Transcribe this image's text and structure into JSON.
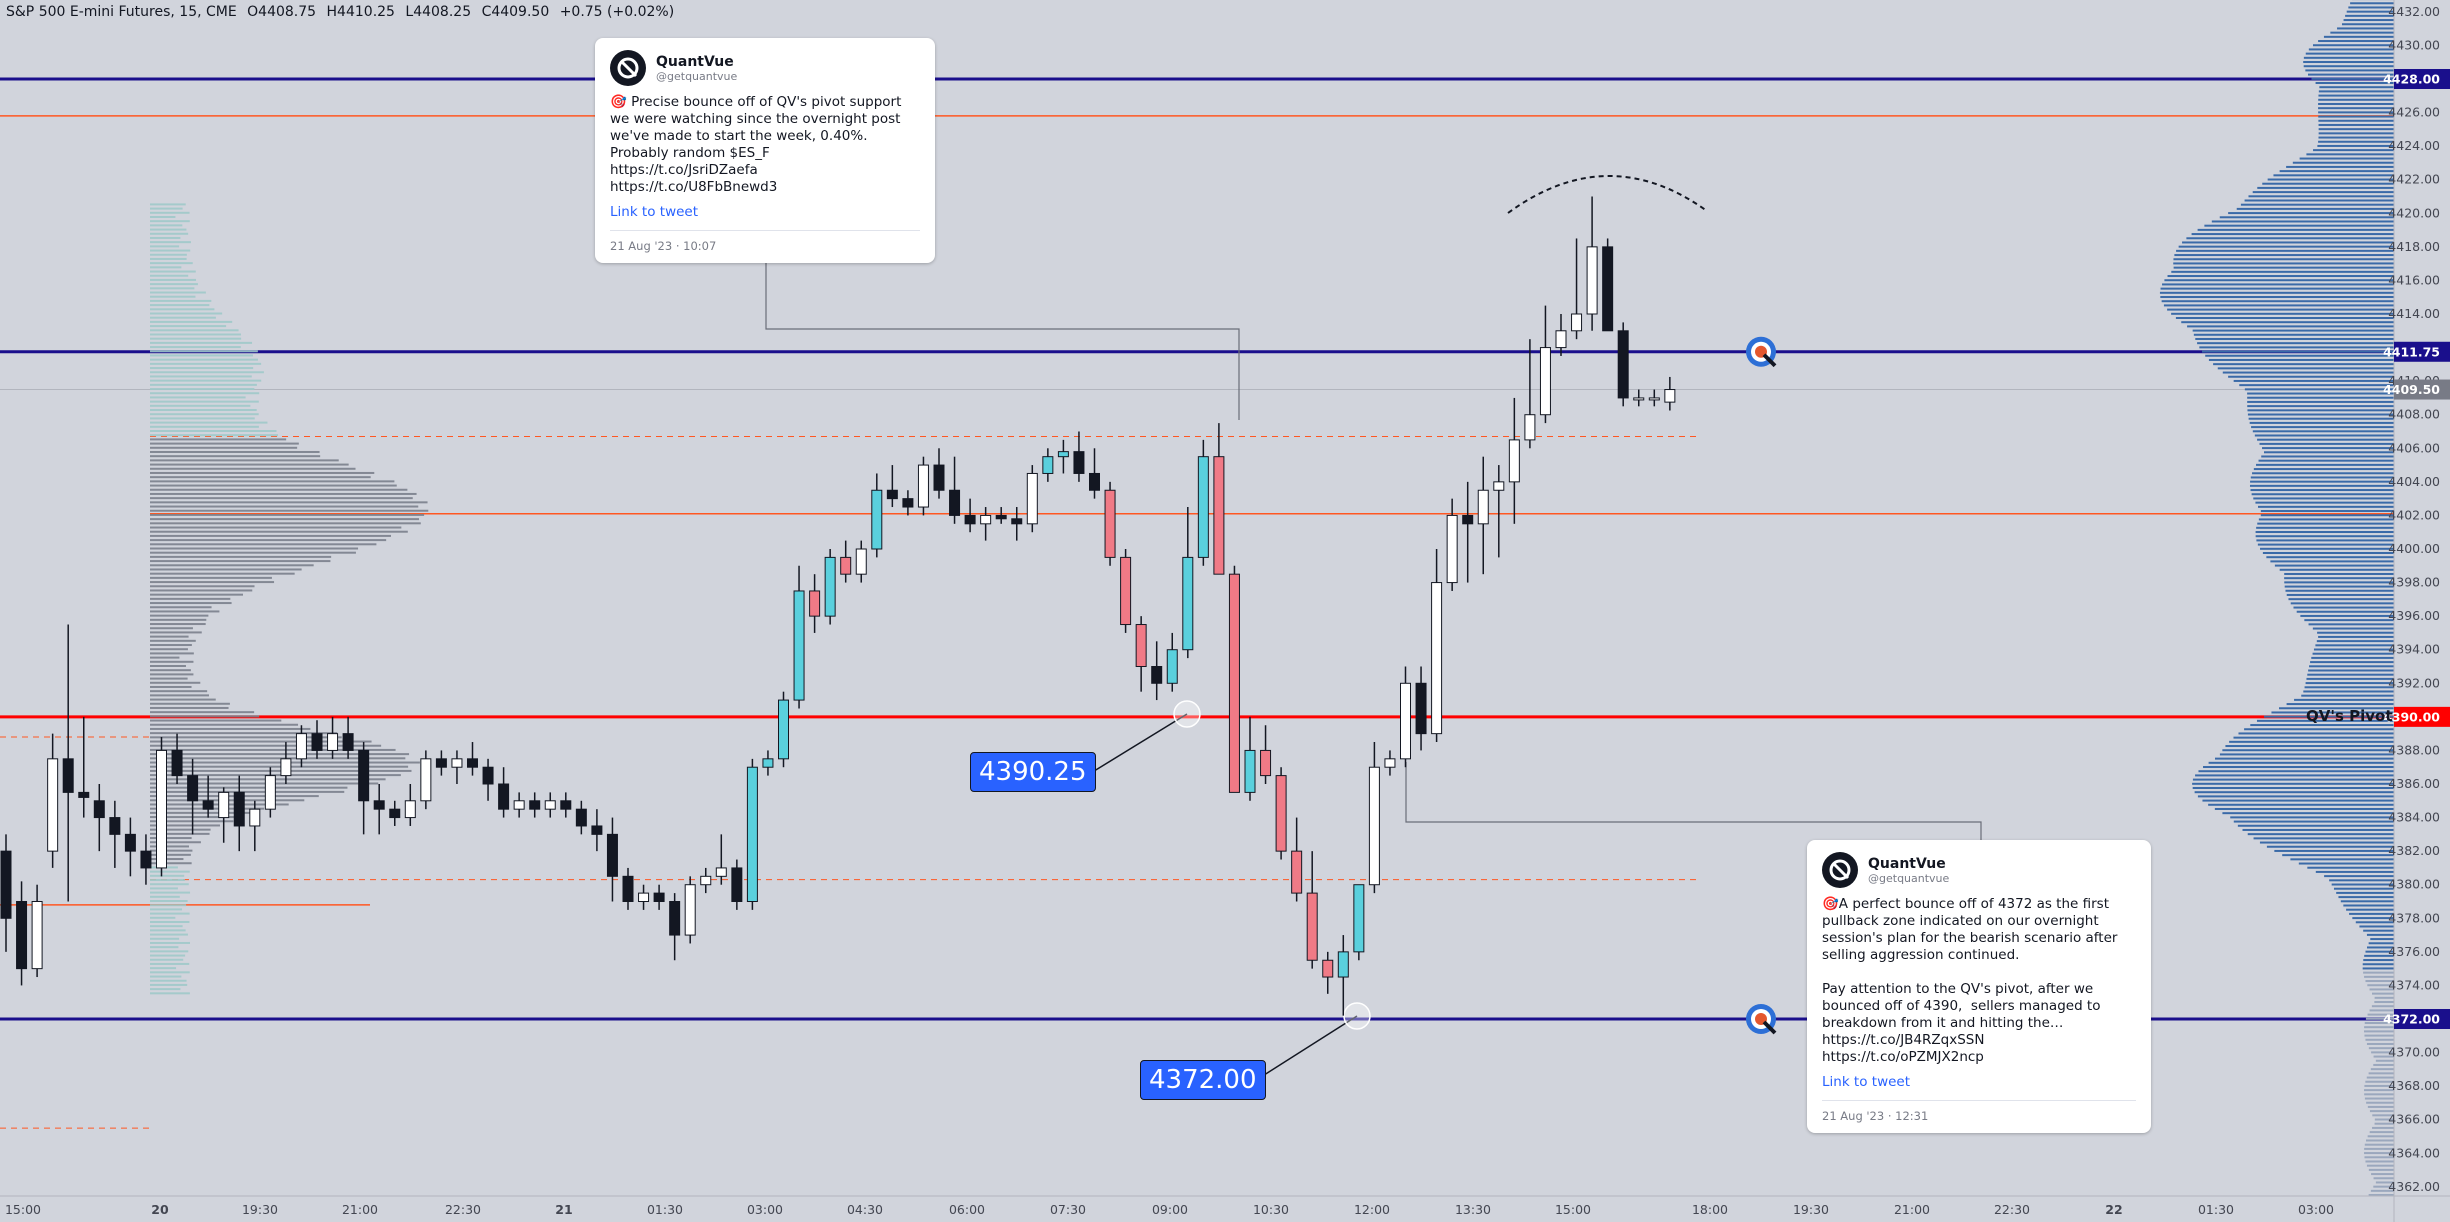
{
  "header": {
    "symbol": "S&P 500 E-mini Futures, 15, CME",
    "open": "O4408.75",
    "high": "H4410.25",
    "low": "L4408.25",
    "close": "C4409.50",
    "change": "+0.75 (+0.02%)"
  },
  "tweets": [
    {
      "name": "QuantVue",
      "handle": "@getquantvue",
      "text": "🎯 Precise bounce off of QV's pivot support we were watching since the overnight post we've made to start the week, 0.40%. Probably random $ES_F https://t.co/JsriDZaefa https://t.co/U8FbBnewd3",
      "link_label": "Link to tweet",
      "date": "21 Aug '23 · 10:07"
    },
    {
      "name": "QuantVue",
      "handle": "@getquantvue",
      "text": "🎯A perfect bounce off of 4372 as the first pullback zone indicated on our overnight session's plan for the bearish scenario after selling aggression continued.\n\nPay attention to the QV's pivot, after we bounced off of 4390,  sellers managed to breakdown from it and hitting the… https://t.co/JB4RZqxSSN https://t.co/oPZMJX2ncp",
      "link_label": "Link to tweet",
      "date": "21 Aug '23 · 12:31"
    }
  ],
  "callouts": [
    "4390.25",
    "4372.00"
  ],
  "pivot_label": "QV's Pivot",
  "colors": {
    "background": "#d1d4dc",
    "up": "#ffffff",
    "down": "#131722",
    "up_highlight": "#5ad0dd",
    "down_highlight": "#f07a86",
    "navy_line": "#1a0f8c",
    "pivot_red": "#ff0000",
    "orange_line": "#ff5722",
    "vp_blue": "#3a6aa8",
    "vp_grey": "#7a7f8c",
    "vp_teal": "#9fc9c9",
    "callout": "#2962ff"
  },
  "chart_data": {
    "type": "candlestick",
    "ylim": [
      4361.5,
      4433.5
    ],
    "price_ticks": [
      4432,
      4430,
      4426,
      4424,
      4422,
      4420,
      4418,
      4416,
      4414,
      4410,
      4408,
      4406,
      4404,
      4402,
      4400,
      4398,
      4396,
      4394,
      4392,
      4388,
      4386,
      4384,
      4382,
      4380,
      4378,
      4376,
      4374,
      4370,
      4368,
      4366,
      4364,
      4362
    ],
    "time_labels": [
      "15:00",
      "20",
      "19:30",
      "21:00",
      "22:30",
      "21",
      "01:30",
      "03:00",
      "04:30",
      "06:00",
      "07:30",
      "09:00",
      "10:30",
      "12:00",
      "13:30",
      "15:00",
      "18:00",
      "19:30",
      "21:00",
      "22:30",
      "22",
      "01:30",
      "03:00"
    ],
    "levels": [
      {
        "price": 4428.0,
        "label": "4428.00",
        "color": "navy"
      },
      {
        "price": 4411.75,
        "label": "4411.75",
        "color": "navy"
      },
      {
        "price": 4409.5,
        "label": "4409.50",
        "color": "last"
      },
      {
        "price": 4390.0,
        "label": "4390.00",
        "color": "red"
      },
      {
        "price": 4372.0,
        "label": "4372.00",
        "color": "navy"
      },
      {
        "price": 4425.8,
        "color": "orange"
      },
      {
        "price": 4402.1,
        "color": "orange"
      },
      {
        "price": 4378.8,
        "color": "orange"
      }
    ],
    "candles": [
      {
        "o": 4382,
        "h": 4383,
        "l": 4376,
        "c": 4378
      },
      {
        "o": 4379,
        "h": 4380.2,
        "l": 4374,
        "c": 4375
      },
      {
        "o": 4375,
        "h": 4380,
        "l": 4374.5,
        "c": 4379
      },
      {
        "o": 4382,
        "h": 4389,
        "l": 4381,
        "c": 4387.5
      },
      {
        "o": 4387.5,
        "h": 4395.5,
        "l": 4379,
        "c": 4385.5
      },
      {
        "o": 4385.5,
        "h": 4390,
        "l": 4384,
        "c": 4385.2
      },
      {
        "o": 4385,
        "h": 4386,
        "l": 4382,
        "c": 4384
      },
      {
        "o": 4384,
        "h": 4385,
        "l": 4381,
        "c": 4383
      },
      {
        "o": 4383,
        "h": 4384,
        "l": 4380.5,
        "c": 4382
      },
      {
        "o": 4382,
        "h": 4383,
        "l": 4380,
        "c": 4381
      },
      {
        "o": 4381,
        "h": 4388.8,
        "l": 4380.5,
        "c": 4388
      },
      {
        "o": 4388,
        "h": 4389,
        "l": 4386,
        "c": 4386.5
      },
      {
        "o": 4386.5,
        "h": 4387.5,
        "l": 4383,
        "c": 4385
      },
      {
        "o": 4385,
        "h": 4386.5,
        "l": 4384,
        "c": 4384.5
      },
      {
        "o": 4384,
        "h": 4385.8,
        "l": 4382.5,
        "c": 4385.5
      },
      {
        "o": 4385.5,
        "h": 4386.5,
        "l": 4382,
        "c": 4383.5
      },
      {
        "o": 4383.5,
        "h": 4385,
        "l": 4382,
        "c": 4384.5
      },
      {
        "o": 4384.5,
        "h": 4387,
        "l": 4384,
        "c": 4386.5
      },
      {
        "o": 4386.5,
        "h": 4388.5,
        "l": 4386,
        "c": 4387.5
      },
      {
        "o": 4387.5,
        "h": 4389.5,
        "l": 4387,
        "c": 4389
      },
      {
        "o": 4389,
        "h": 4389.8,
        "l": 4387.5,
        "c": 4388
      },
      {
        "o": 4388,
        "h": 4390,
        "l": 4387.5,
        "c": 4389
      },
      {
        "o": 4389,
        "h": 4390,
        "l": 4387.5,
        "c": 4388
      },
      {
        "o": 4388,
        "h": 4388.5,
        "l": 4383,
        "c": 4385
      },
      {
        "o": 4385,
        "h": 4386,
        "l": 4383,
        "c": 4384.5
      },
      {
        "o": 4384.5,
        "h": 4385,
        "l": 4383.5,
        "c": 4384
      },
      {
        "o": 4384,
        "h": 4386,
        "l": 4383.5,
        "c": 4385
      },
      {
        "o": 4385,
        "h": 4388,
        "l": 4384.5,
        "c": 4387.5
      },
      {
        "o": 4387.5,
        "h": 4388,
        "l": 4386.5,
        "c": 4387
      },
      {
        "o": 4387,
        "h": 4388,
        "l": 4386,
        "c": 4387.5
      },
      {
        "o": 4387.5,
        "h": 4388.5,
        "l": 4386.5,
        "c": 4387
      },
      {
        "o": 4387,
        "h": 4387.5,
        "l": 4385,
        "c": 4386
      },
      {
        "o": 4386,
        "h": 4387,
        "l": 4384,
        "c": 4384.5
      },
      {
        "o": 4384.5,
        "h": 4385.5,
        "l": 4384,
        "c": 4385
      },
      {
        "o": 4385,
        "h": 4385.5,
        "l": 4384,
        "c": 4384.5
      },
      {
        "o": 4384.5,
        "h": 4385.5,
        "l": 4384,
        "c": 4385
      },
      {
        "o": 4385,
        "h": 4385.5,
        "l": 4384,
        "c": 4384.5
      },
      {
        "o": 4384.5,
        "h": 4385,
        "l": 4383,
        "c": 4383.5
      },
      {
        "o": 4383.5,
        "h": 4384.5,
        "l": 4382,
        "c": 4383
      },
      {
        "o": 4383,
        "h": 4384,
        "l": 4379,
        "c": 4380.5
      },
      {
        "o": 4380.5,
        "h": 4381,
        "l": 4378.5,
        "c": 4379
      },
      {
        "o": 4379,
        "h": 4380,
        "l": 4378.5,
        "c": 4379.5
      },
      {
        "o": 4379.5,
        "h": 4380,
        "l": 4378.5,
        "c": 4379
      },
      {
        "o": 4379,
        "h": 4379.5,
        "l": 4375.5,
        "c": 4377
      },
      {
        "o": 4377,
        "h": 4380.5,
        "l": 4376.5,
        "c": 4380
      },
      {
        "o": 4380,
        "h": 4381,
        "l": 4379.5,
        "c": 4380.5
      },
      {
        "o": 4380.5,
        "h": 4383,
        "l": 4380,
        "c": 4381
      },
      {
        "o": 4381,
        "h": 4381.5,
        "l": 4378.5,
        "c": 4379
      },
      {
        "o": 4379,
        "h": 4387.5,
        "l": 4378.5,
        "c": 4387
      },
      {
        "o": 4387,
        "h": 4388,
        "l": 4386.5,
        "c": 4387.5
      },
      {
        "o": 4387.5,
        "h": 4391.5,
        "l": 4387,
        "c": 4391
      },
      {
        "o": 4391,
        "h": 4399,
        "l": 4390.5,
        "c": 4397.5
      },
      {
        "o": 4397.5,
        "h": 4398.5,
        "l": 4395,
        "c": 4396
      },
      {
        "o": 4396,
        "h": 4400,
        "l": 4395.5,
        "c": 4399.5
      },
      {
        "o": 4399.5,
        "h": 4400.5,
        "l": 4398,
        "c": 4398.5
      },
      {
        "o": 4398.5,
        "h": 4400.5,
        "l": 4398,
        "c": 4400
      },
      {
        "o": 4400,
        "h": 4404.5,
        "l": 4399.5,
        "c": 4403.5
      },
      {
        "o": 4403.5,
        "h": 4405,
        "l": 4402.5,
        "c": 4403
      },
      {
        "o": 4403,
        "h": 4403.5,
        "l": 4402,
        "c": 4402.5
      },
      {
        "o": 4402.5,
        "h": 4405.5,
        "l": 4402,
        "c": 4405
      },
      {
        "o": 4405,
        "h": 4406,
        "l": 4403,
        "c": 4403.5
      },
      {
        "o": 4403.5,
        "h": 4405.5,
        "l": 4401.5,
        "c": 4402
      },
      {
        "o": 4402,
        "h": 4403,
        "l": 4401,
        "c": 4401.5
      },
      {
        "o": 4401.5,
        "h": 4402.5,
        "l": 4400.5,
        "c": 4402
      },
      {
        "o": 4402,
        "h": 4402.5,
        "l": 4401.5,
        "c": 4401.8
      },
      {
        "o": 4401.8,
        "h": 4402.5,
        "l": 4400.5,
        "c": 4401.5
      },
      {
        "o": 4401.5,
        "h": 4405,
        "l": 4401,
        "c": 4404.5
      },
      {
        "o": 4404.5,
        "h": 4406,
        "l": 4404,
        "c": 4405.5
      },
      {
        "o": 4405.5,
        "h": 4406.5,
        "l": 4404.5,
        "c": 4405.8
      },
      {
        "o": 4405.8,
        "h": 4407,
        "l": 4404,
        "c": 4404.5
      },
      {
        "o": 4404.5,
        "h": 4406,
        "l": 4403,
        "c": 4403.5
      },
      {
        "o": 4403.5,
        "h": 4404,
        "l": 4399,
        "c": 4399.5
      },
      {
        "o": 4399.5,
        "h": 4400,
        "l": 4395,
        "c": 4395.5
      },
      {
        "o": 4395.5,
        "h": 4396,
        "l": 4391.5,
        "c": 4393
      },
      {
        "o": 4393,
        "h": 4394.5,
        "l": 4391,
        "c": 4392
      },
      {
        "o": 4392,
        "h": 4395,
        "l": 4391.5,
        "c": 4394
      },
      {
        "o": 4394,
        "h": 4402.5,
        "l": 4393.5,
        "c": 4399.5
      },
      {
        "o": 4399.5,
        "h": 4406.5,
        "l": 4399,
        "c": 4405.5
      },
      {
        "o": 4405.5,
        "h": 4407.5,
        "l": 4398.5,
        "c": 4398.5
      },
      {
        "o": 4398.5,
        "h": 4399,
        "l": 4385.5,
        "c": 4385.5
      },
      {
        "o": 4385.5,
        "h": 4390,
        "l": 4385,
        "c": 4388
      },
      {
        "o": 4388,
        "h": 4389.5,
        "l": 4386,
        "c": 4386.5
      },
      {
        "o": 4386.5,
        "h": 4387,
        "l": 4381.5,
        "c": 4382
      },
      {
        "o": 4382,
        "h": 4384,
        "l": 4379,
        "c": 4379.5
      },
      {
        "o": 4379.5,
        "h": 4382,
        "l": 4375,
        "c": 4375.5
      },
      {
        "o": 4375.5,
        "h": 4376,
        "l": 4373.5,
        "c": 4374.5
      },
      {
        "o": 4374.5,
        "h": 4377,
        "l": 4372.2,
        "c": 4376
      },
      {
        "o": 4376,
        "h": 4380,
        "l": 4375.5,
        "c": 4380
      },
      {
        "o": 4380,
        "h": 4388.5,
        "l": 4379.5,
        "c": 4387
      },
      {
        "o": 4387,
        "h": 4388,
        "l": 4386.5,
        "c": 4387.5
      },
      {
        "o": 4387.5,
        "h": 4393,
        "l": 4387,
        "c": 4392
      },
      {
        "o": 4392,
        "h": 4393,
        "l": 4388,
        "c": 4389
      },
      {
        "o": 4389,
        "h": 4400,
        "l": 4388.5,
        "c": 4398
      },
      {
        "o": 4398,
        "h": 4403,
        "l": 4397.5,
        "c": 4402
      },
      {
        "o": 4402,
        "h": 4404,
        "l": 4398,
        "c": 4401.5
      },
      {
        "o": 4401.5,
        "h": 4405.5,
        "l": 4398.5,
        "c": 4403.5
      },
      {
        "o": 4403.5,
        "h": 4405,
        "l": 4399.5,
        "c": 4404
      },
      {
        "o": 4404,
        "h": 4409,
        "l": 4401.5,
        "c": 4406.5
      },
      {
        "o": 4406.5,
        "h": 4412.5,
        "l": 4406,
        "c": 4408
      },
      {
        "o": 4408,
        "h": 4414.5,
        "l": 4407.5,
        "c": 4412
      },
      {
        "o": 4412,
        "h": 4414,
        "l": 4411.5,
        "c": 4413
      },
      {
        "o": 4413,
        "h": 4418.5,
        "l": 4412.5,
        "c": 4414
      },
      {
        "o": 4414,
        "h": 4421,
        "l": 4413,
        "c": 4418
      },
      {
        "o": 4418,
        "h": 4418.5,
        "l": 4413,
        "c": 4413
      },
      {
        "o": 4413,
        "h": 4413.5,
        "l": 4408.5,
        "c": 4409
      },
      {
        "o": 4409,
        "h": 4409.5,
        "l": 4408.5,
        "c": 4409
      },
      {
        "o": 4409,
        "h": 4409.5,
        "l": 4408.5,
        "c": 4409
      },
      {
        "o": 4408.75,
        "h": 4410.25,
        "l": 4408.25,
        "c": 4409.5
      }
    ],
    "highlighted_candles": [
      48,
      49,
      50,
      51,
      52,
      53,
      54,
      56,
      67,
      68,
      71,
      72,
      73,
      75,
      76,
      77,
      78,
      79,
      80,
      81,
      82,
      83,
      84,
      85,
      86,
      87
    ],
    "volume_profiles": [
      {
        "name": "session-profile",
        "color": "teal",
        "from": 4373.5,
        "to": 4420.5
      },
      {
        "name": "right-profile",
        "color": "blue",
        "from": 4361.5,
        "to": 4433.5
      }
    ]
  }
}
